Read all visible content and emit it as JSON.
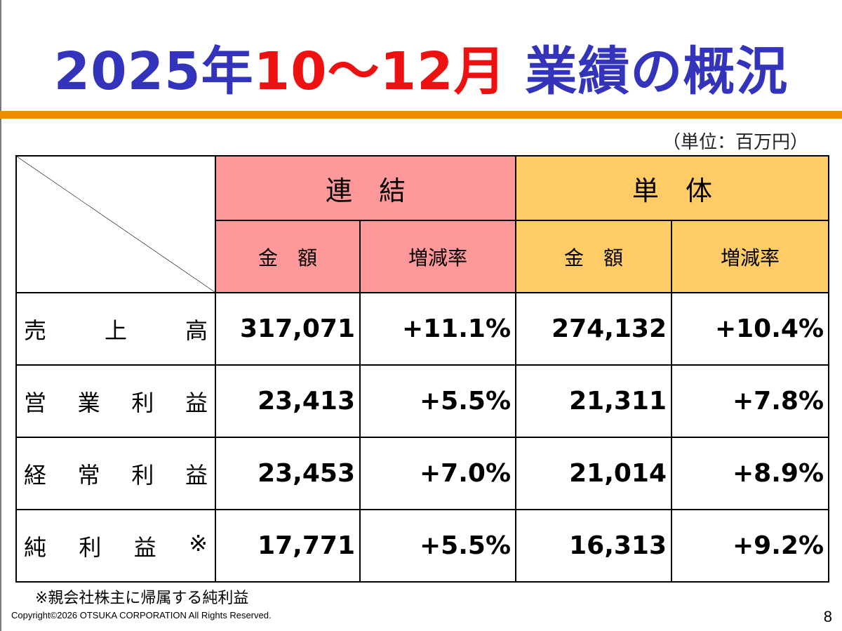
{
  "title": {
    "year": "2025年",
    "period": "10～12月",
    "subject": " 業績の概況"
  },
  "colors": {
    "title_blue": "#3333bb",
    "title_red": "#ee1111",
    "rule_orange": "#f08c00",
    "consolidated_bg": "#ff9999",
    "nonconsolidated_bg": "#ffcc66"
  },
  "unit_note": "（単位：百万円）",
  "table": {
    "groups": {
      "consolidated": "連　結",
      "nonconsolidated": "単　体"
    },
    "subheaders": {
      "amount": "金　額",
      "rate": "増減率"
    },
    "rows": [
      {
        "label": [
          "売",
          "上",
          "高"
        ],
        "c_amount": "317,071",
        "c_rate": "+11.1%",
        "n_amount": "274,132",
        "n_rate": "+10.4%"
      },
      {
        "label": [
          "営",
          "業",
          "利",
          "益"
        ],
        "c_amount": "23,413",
        "c_rate": "+5.5%",
        "n_amount": "21,311",
        "n_rate": "+7.8%"
      },
      {
        "label": [
          "経",
          "常",
          "利",
          "益"
        ],
        "c_amount": "23,453",
        "c_rate": "+7.0%",
        "n_amount": "21,014",
        "n_rate": "+8.9%"
      },
      {
        "label": [
          "純",
          "利",
          "益",
          "※"
        ],
        "c_amount": "17,771",
        "c_rate": "+5.5%",
        "n_amount": "16,313",
        "n_rate": "+9.2%"
      }
    ]
  },
  "footnote": "※親会社株主に帰属する純利益",
  "copyright": "Copyright©2026 OTSUKA CORPORATION All Rights Reserved.",
  "page_number": "8"
}
